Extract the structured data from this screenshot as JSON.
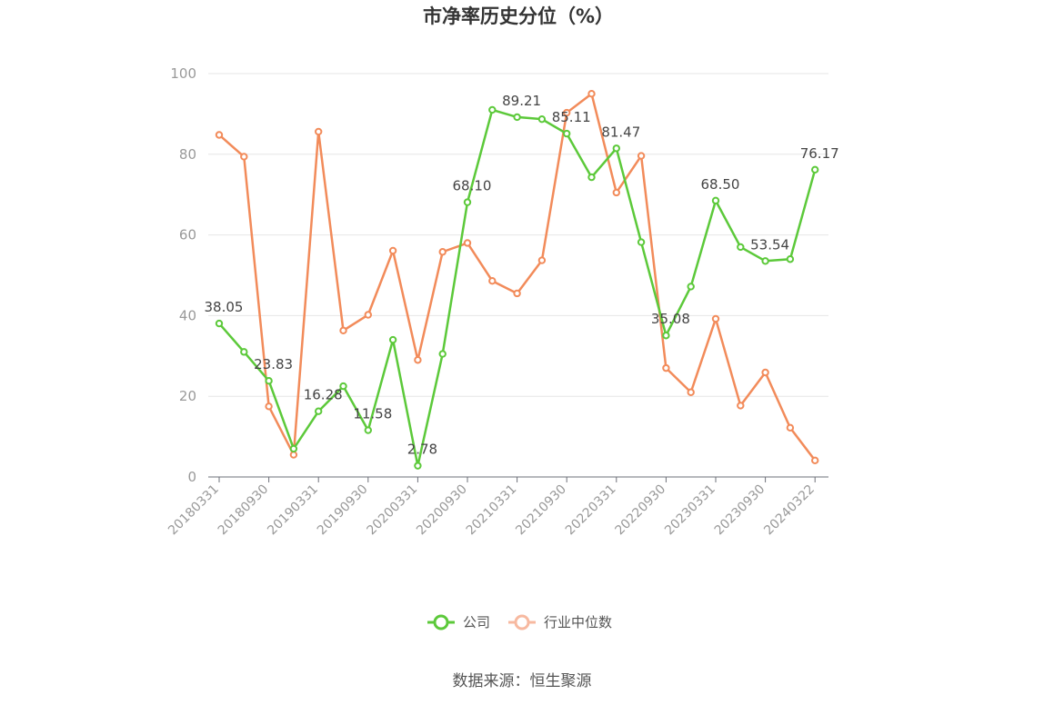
{
  "chart_data": {
    "type": "line",
    "title": "市净率历史分位（%）",
    "ylim": [
      0,
      100
    ],
    "yticks": [
      0,
      20,
      40,
      60,
      80,
      100
    ],
    "grid": true,
    "legend_position": "bottom-center",
    "x_tick_labels": [
      "20180331",
      "20180930",
      "20190331",
      "20190930",
      "20200331",
      "20200930",
      "20210331",
      "20210930",
      "20220331",
      "20220930",
      "20230331",
      "20230930",
      "20240322"
    ],
    "x": [
      "20180331",
      "20180630",
      "20180930",
      "20181231",
      "20190331",
      "20190630",
      "20190930",
      "20191231",
      "20200331",
      "20200630",
      "20200930",
      "20201231",
      "20210331",
      "20210630",
      "20210930",
      "20211231",
      "20220331",
      "20220630",
      "20220930",
      "20221231",
      "20230331",
      "20230630",
      "20230930",
      "20231231",
      "20240322"
    ],
    "series": [
      {
        "name": "公司",
        "color": "#5cc93a",
        "values": [
          38.05,
          31.0,
          23.83,
          7.0,
          16.28,
          22.5,
          11.58,
          34.0,
          2.78,
          30.5,
          68.1,
          91.0,
          89.21,
          88.7,
          85.11,
          74.3,
          81.47,
          58.2,
          35.08,
          47.2,
          68.5,
          57.0,
          53.54,
          54.0,
          76.17
        ],
        "labeled_indices": [
          0,
          2,
          4,
          6,
          8,
          10,
          12,
          14,
          16,
          18,
          20,
          22,
          24
        ]
      },
      {
        "name": "行业中位数",
        "color": "#f28b5a",
        "values": [
          84.8,
          79.4,
          17.5,
          5.5,
          85.6,
          36.3,
          40.2,
          56.1,
          29.0,
          55.8,
          58.0,
          48.6,
          45.5,
          53.7,
          90.3,
          95.0,
          70.5,
          79.6,
          27.0,
          21.0,
          39.2,
          17.7,
          25.9,
          12.2,
          4.1
        ]
      }
    ],
    "data_labels": [
      "38.05",
      "23.83",
      "16.28",
      "11.58",
      "2.78",
      "68.10",
      "89.21",
      "85.11",
      "81.47",
      "35.08",
      "68.50",
      "53.54",
      "76.17"
    ]
  },
  "legend": [
    {
      "label": "公司",
      "color": "#5cc93a",
      "legend_color": "#5cc93a"
    },
    {
      "label": "行业中位数",
      "color": "#f28b5a",
      "legend_color": "#f7b9a0"
    }
  ],
  "source_text": "数据来源：恒生聚源"
}
